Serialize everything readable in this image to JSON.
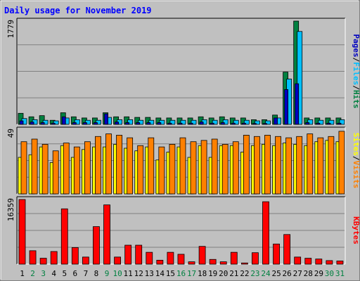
{
  "chart_data": [
    {
      "type": "bar",
      "title": "Daily usage for November 2019",
      "categories": [
        "1",
        "2",
        "3",
        "4",
        "5",
        "6",
        "7",
        "8",
        "9",
        "10",
        "11",
        "12",
        "13",
        "14",
        "15",
        "16",
        "17",
        "18",
        "19",
        "20",
        "21",
        "22",
        "23",
        "24",
        "25",
        "26",
        "27",
        "28",
        "29",
        "30",
        "31"
      ],
      "weekend_days": [
        "2",
        "3",
        "9",
        "10",
        "16",
        "17",
        "23",
        "24",
        "30",
        "31"
      ],
      "ymax_label": "1779",
      "ylim": [
        0,
        1779
      ],
      "legend": [
        "Pages",
        "Files",
        "Hits"
      ],
      "series": [
        {
          "name": "Hits",
          "color": "#008040",
          "values": [
            190,
            130,
            150,
            70,
            200,
            130,
            110,
            110,
            200,
            130,
            130,
            120,
            120,
            110,
            110,
            110,
            110,
            130,
            110,
            130,
            110,
            110,
            80,
            80,
            160,
            900,
            1779,
            110,
            110,
            110,
            110
          ]
        },
        {
          "name": "Files",
          "color": "#00c0ff",
          "values": [
            100,
            80,
            70,
            60,
            110,
            80,
            70,
            70,
            120,
            80,
            80,
            70,
            70,
            70,
            70,
            70,
            70,
            80,
            70,
            80,
            70,
            70,
            60,
            60,
            110,
            780,
            1600,
            80,
            70,
            70,
            80
          ]
        },
        {
          "name": "Pages",
          "color": "#0000c0",
          "values": [
            60,
            40,
            30,
            20,
            130,
            30,
            30,
            30,
            180,
            40,
            30,
            30,
            30,
            30,
            20,
            20,
            20,
            40,
            20,
            30,
            20,
            20,
            15,
            15,
            110,
            600,
            700,
            30,
            20,
            20,
            20
          ]
        }
      ]
    },
    {
      "type": "bar",
      "ymax_label": "49",
      "ylim": [
        0,
        49
      ],
      "legend": [
        "Sites",
        "Visits"
      ],
      "series": [
        {
          "name": "Visits",
          "color": "#ff8000",
          "values": [
            40,
            42,
            38,
            33,
            39,
            36,
            40,
            44,
            46,
            45,
            43,
            37,
            43,
            36,
            38,
            43,
            40,
            41,
            42,
            38,
            40,
            45,
            44,
            45,
            44,
            43,
            44,
            46,
            43,
            44,
            48
          ]
        },
        {
          "name": "Sites",
          "color": "#ffff00",
          "values": [
            28,
            30,
            36,
            24,
            37,
            28,
            34,
            36,
            36,
            38,
            35,
            33,
            36,
            26,
            32,
            36,
            28,
            37,
            28,
            37,
            37,
            32,
            37,
            38,
            37,
            39,
            38,
            37,
            40,
            41,
            40
          ]
        }
      ]
    },
    {
      "type": "bar",
      "ymax_label": "16359",
      "ylim": [
        0,
        16359
      ],
      "legend": [
        "KBytes"
      ],
      "series": [
        {
          "name": "KBytes",
          "color": "#ff0000",
          "values": [
            16359,
            3400,
            1500,
            3200,
            14000,
            4200,
            1800,
            9500,
            15000,
            1800,
            4800,
            4800,
            3000,
            1000,
            3000,
            2500,
            600,
            4500,
            1200,
            600,
            3000,
            300,
            2900,
            15800,
            5100,
            7500,
            1800,
            1500,
            1300,
            900,
            800
          ]
        }
      ]
    }
  ]
}
